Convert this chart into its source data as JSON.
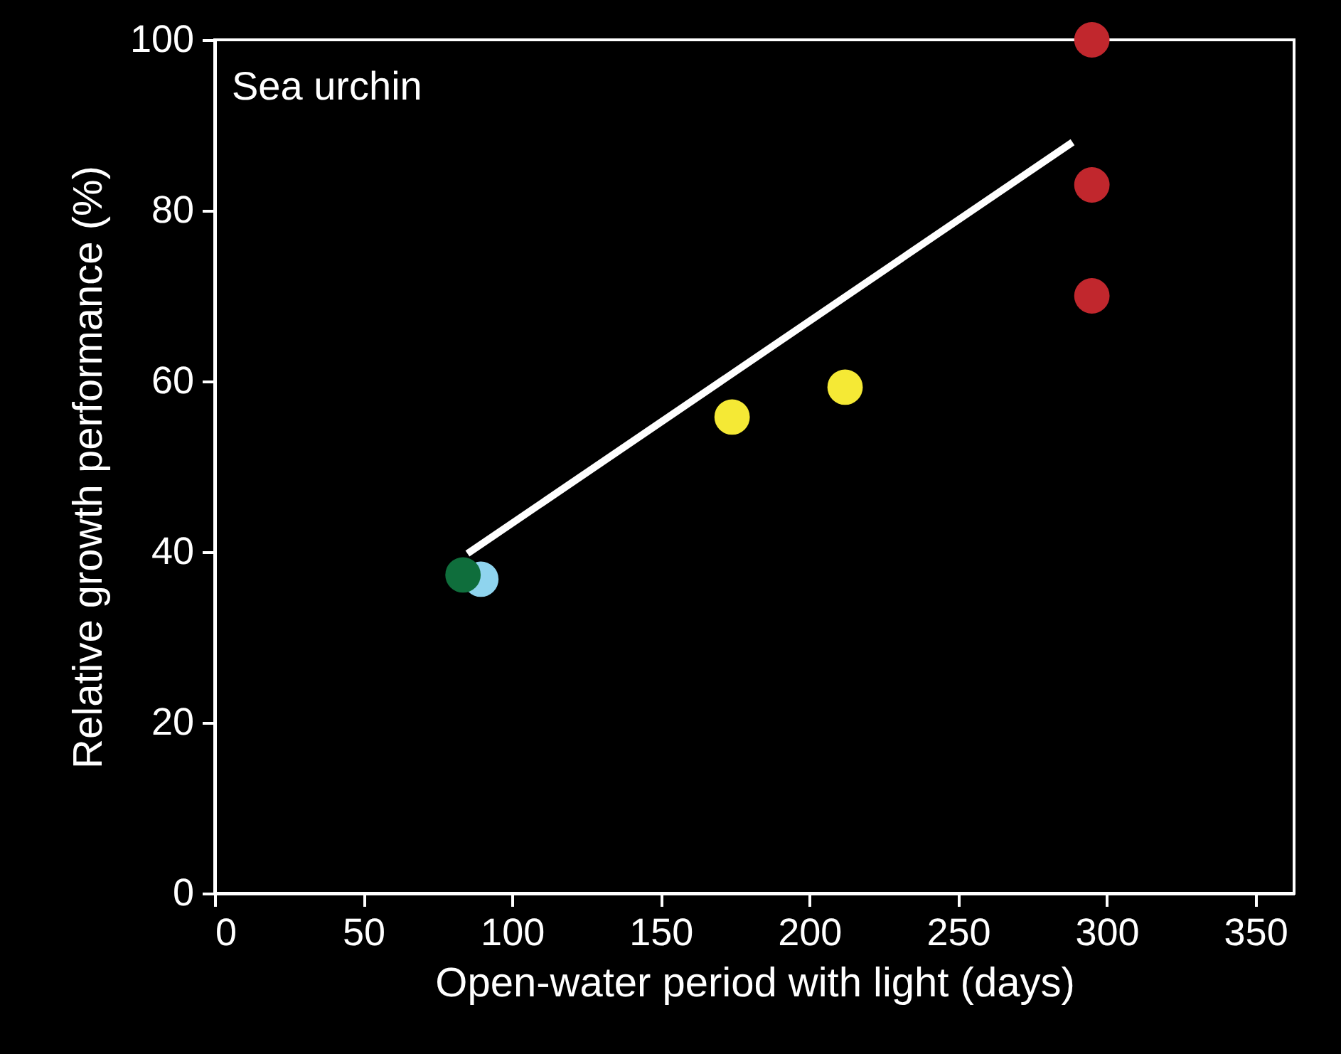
{
  "chart_data": {
    "type": "scatter",
    "annotations": [
      "Sea urchin"
    ],
    "xlabel": "Open-water period with light (days)",
    "ylabel": "Relative growth performance (%)",
    "xlim": [
      0,
      363
    ],
    "xticks": [
      0,
      50,
      100,
      150,
      200,
      250,
      300,
      350
    ],
    "ylim": [
      0,
      100
    ],
    "yticks": [
      0,
      20,
      40,
      60,
      80,
      100
    ],
    "grid": false,
    "marker": "circle",
    "series": [
      {
        "type": "line",
        "marker": "none",
        "color": "#ffffff",
        "x": [
          85,
          288.5
        ],
        "values": [
          39.8,
          88
        ]
      },
      {
        "color": "#c1272d",
        "x": [
          295,
          295,
          295
        ],
        "values": [
          100,
          83,
          70
        ]
      },
      {
        "color": "#f5e935",
        "x": [
          174,
          212
        ],
        "values": [
          55.8,
          59.3
        ]
      },
      {
        "color": "#8fd4ee",
        "x": [
          89.5
        ],
        "values": [
          36.8
        ]
      },
      {
        "color": "#0f6e3c",
        "x": [
          83.5
        ],
        "values": [
          37.3
        ]
      }
    ]
  }
}
